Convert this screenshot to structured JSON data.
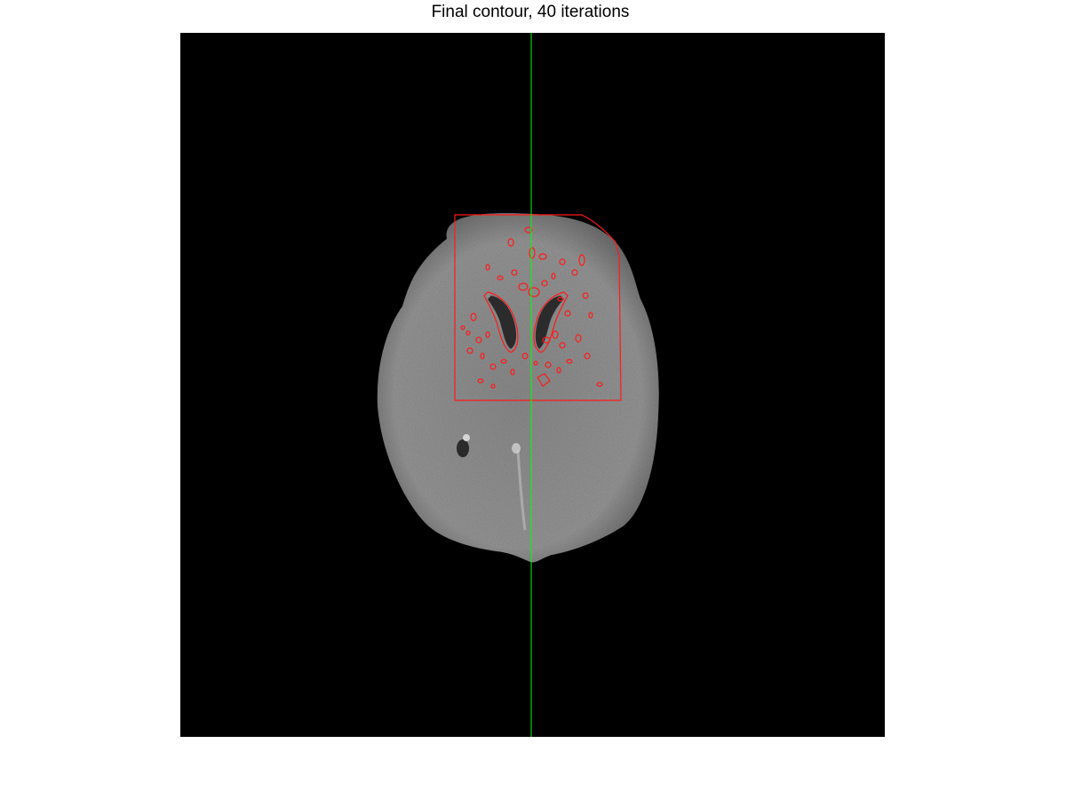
{
  "figure": {
    "title": "Final contour, 40 iterations"
  },
  "image": {
    "subject": "brain-ct-slice-icon",
    "background_color": "#000000",
    "tissue_color": "#8f8f8f"
  },
  "overlays": {
    "contour_color": "#ff1a1a",
    "midline_color": "#00ff00"
  }
}
